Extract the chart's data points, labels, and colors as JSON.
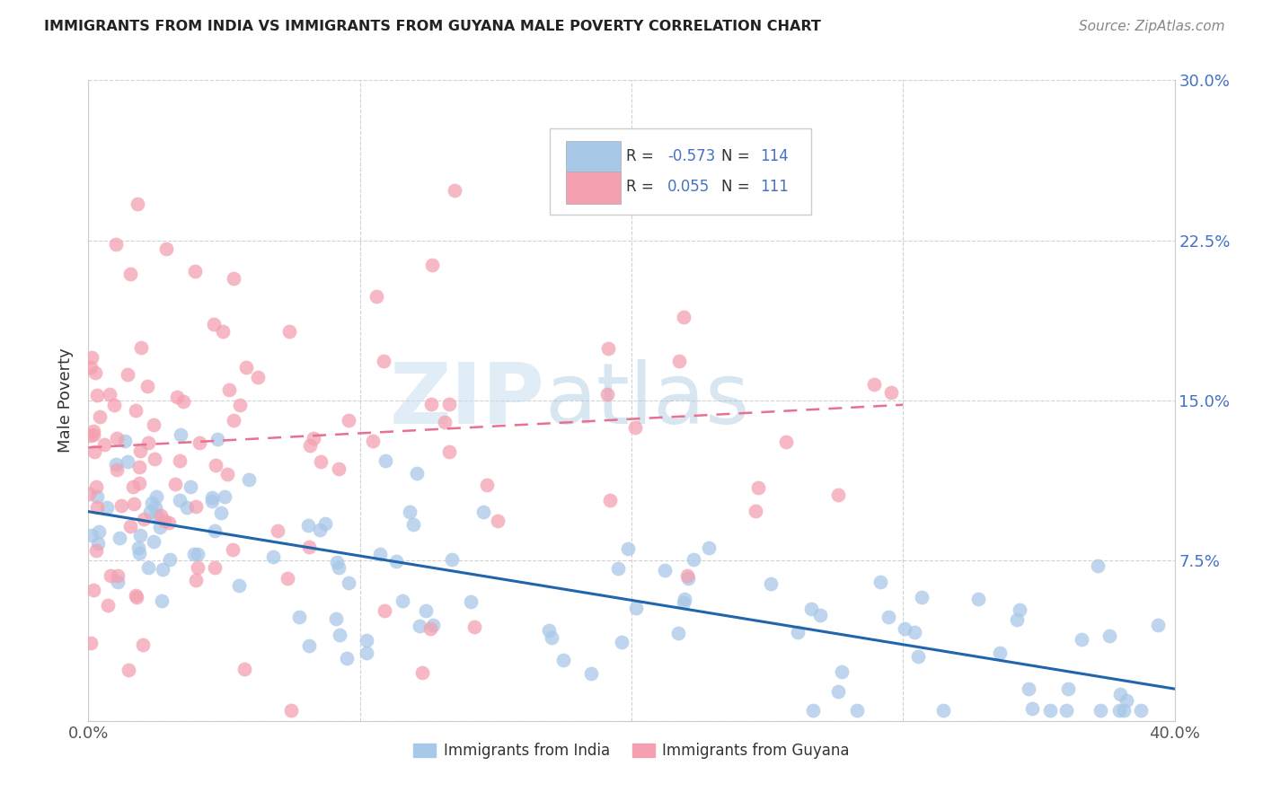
{
  "title": "IMMIGRANTS FROM INDIA VS IMMIGRANTS FROM GUYANA MALE POVERTY CORRELATION CHART",
  "source": "Source: ZipAtlas.com",
  "ylabel": "Male Poverty",
  "xlim": [
    0.0,
    0.4
  ],
  "ylim": [
    0.0,
    0.3
  ],
  "india_color": "#a8c8e8",
  "guyana_color": "#f4a0b0",
  "india_line_color": "#2166ac",
  "guyana_line_color": "#e87090",
  "legend_india_R": "-0.573",
  "legend_india_N": "114",
  "legend_guyana_R": "0.055",
  "legend_guyana_N": "111",
  "india_line_x0": 0.0,
  "india_line_y0": 0.098,
  "india_line_x1": 0.4,
  "india_line_y1": 0.015,
  "guyana_line_x0": 0.0,
  "guyana_line_y0": 0.128,
  "guyana_line_x1": 0.3,
  "guyana_line_y1": 0.148
}
